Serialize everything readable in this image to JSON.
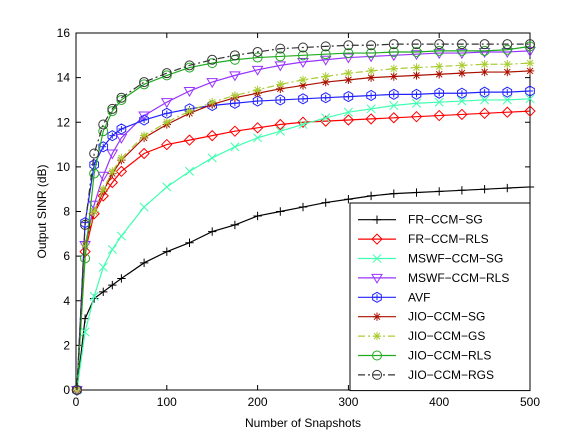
{
  "chart_data": {
    "type": "line",
    "title": "",
    "xlabel": "Number of Snapshots",
    "ylabel": "Output SINR (dB)",
    "xlim": [
      0,
      500
    ],
    "ylim": [
      0,
      16
    ],
    "xticks": [
      0,
      100,
      200,
      300,
      400,
      500
    ],
    "yticks": [
      0,
      2,
      4,
      6,
      8,
      10,
      12,
      14,
      16
    ],
    "grid": false,
    "legend_position": "bottom-right",
    "series": [
      {
        "name": "FR−CCM−SG",
        "color": "#000000",
        "marker": "plus",
        "dash": "solid",
        "x": [
          1,
          10,
          20,
          30,
          40,
          50,
          75,
          100,
          125,
          150,
          175,
          200,
          225,
          250,
          275,
          300,
          325,
          350,
          375,
          400,
          425,
          450,
          475,
          500
        ],
        "y": [
          0,
          3.2,
          4.1,
          4.4,
          4.7,
          5.0,
          5.7,
          6.2,
          6.6,
          7.1,
          7.4,
          7.8,
          8.0,
          8.2,
          8.4,
          8.55,
          8.7,
          8.8,
          8.85,
          8.9,
          8.95,
          9.0,
          9.05,
          9.1
        ]
      },
      {
        "name": "FR−CCM−RLS",
        "color": "#ff0000",
        "marker": "diamond",
        "dash": "solid",
        "x": [
          1,
          10,
          20,
          30,
          40,
          50,
          75,
          100,
          125,
          150,
          175,
          200,
          225,
          250,
          275,
          300,
          325,
          350,
          375,
          400,
          425,
          450,
          475,
          500
        ],
        "y": [
          0,
          6.2,
          7.9,
          8.7,
          9.3,
          9.8,
          10.6,
          11.0,
          11.2,
          11.4,
          11.6,
          11.75,
          11.9,
          12.0,
          12.05,
          12.1,
          12.15,
          12.2,
          12.25,
          12.3,
          12.35,
          12.4,
          12.45,
          12.5
        ]
      },
      {
        "name": "MSWF−CCM−SG",
        "color": "#40ffb0",
        "marker": "x",
        "dash": "solid",
        "x": [
          1,
          10,
          20,
          30,
          40,
          50,
          75,
          100,
          125,
          150,
          175,
          200,
          225,
          250,
          275,
          300,
          325,
          350,
          375,
          400,
          425,
          450,
          475,
          500
        ],
        "y": [
          0,
          2.6,
          4.2,
          5.5,
          6.3,
          6.9,
          8.2,
          9.1,
          9.8,
          10.4,
          10.9,
          11.3,
          11.6,
          11.9,
          12.2,
          12.45,
          12.6,
          12.75,
          12.85,
          12.9,
          12.95,
          13.0,
          13.0,
          13.05
        ]
      },
      {
        "name": "MSWF−CCM−RLS",
        "color": "#9933ff",
        "marker": "triangle-down",
        "dash": "solid",
        "x": [
          1,
          10,
          20,
          30,
          40,
          50,
          75,
          100,
          125,
          150,
          175,
          200,
          225,
          250,
          275,
          300,
          325,
          350,
          375,
          400,
          425,
          450,
          475,
          500
        ],
        "y": [
          0,
          6.5,
          8.3,
          9.6,
          10.6,
          11.3,
          12.3,
          12.9,
          13.4,
          13.8,
          14.1,
          14.35,
          14.55,
          14.7,
          14.8,
          14.9,
          14.95,
          15.0,
          15.05,
          15.1,
          15.1,
          15.15,
          15.15,
          15.2
        ]
      },
      {
        "name": "AVF",
        "color": "#2222ff",
        "marker": "star",
        "dash": "solid",
        "x": [
          1,
          10,
          20,
          30,
          40,
          50,
          75,
          100,
          125,
          150,
          175,
          200,
          225,
          250,
          275,
          300,
          325,
          350,
          375,
          400,
          425,
          450,
          475,
          500
        ],
        "y": [
          0,
          7.5,
          10.1,
          10.9,
          11.4,
          11.7,
          12.1,
          12.4,
          12.6,
          12.75,
          12.85,
          12.95,
          13.0,
          13.05,
          13.1,
          13.15,
          13.2,
          13.25,
          13.25,
          13.3,
          13.3,
          13.35,
          13.35,
          13.4
        ]
      },
      {
        "name": "JIO−CCM−SG",
        "color": "#aa1100",
        "marker": "asterisk",
        "dash": "solid",
        "x": [
          1,
          10,
          20,
          30,
          40,
          50,
          75,
          100,
          125,
          150,
          175,
          200,
          225,
          250,
          275,
          300,
          325,
          350,
          375,
          400,
          425,
          450,
          475,
          500
        ],
        "y": [
          0,
          6.5,
          8.0,
          8.9,
          9.7,
          10.3,
          11.3,
          11.9,
          12.4,
          12.8,
          13.1,
          13.3,
          13.5,
          13.65,
          13.8,
          13.9,
          14.0,
          14.05,
          14.1,
          14.15,
          14.2,
          14.25,
          14.25,
          14.3
        ]
      },
      {
        "name": "JIO−CCM−GS",
        "color": "#aacc33",
        "marker": "asterisk",
        "dash": "dashdot",
        "x": [
          1,
          10,
          20,
          30,
          40,
          50,
          75,
          100,
          125,
          150,
          175,
          200,
          225,
          250,
          275,
          300,
          325,
          350,
          375,
          400,
          425,
          450,
          475,
          500
        ],
        "y": [
          0,
          6.5,
          8.0,
          9.0,
          9.8,
          10.4,
          11.4,
          12.0,
          12.5,
          12.9,
          13.2,
          13.45,
          13.7,
          13.9,
          14.05,
          14.2,
          14.3,
          14.4,
          14.45,
          14.5,
          14.55,
          14.6,
          14.6,
          14.65
        ]
      },
      {
        "name": "JIO−CCM−RLS",
        "color": "#22aa22",
        "marker": "circle",
        "dash": "solid",
        "x": [
          1,
          10,
          20,
          30,
          40,
          50,
          75,
          100,
          125,
          150,
          175,
          200,
          225,
          250,
          275,
          300,
          325,
          350,
          375,
          400,
          425,
          450,
          475,
          500
        ],
        "y": [
          0,
          5.9,
          9.7,
          11.6,
          12.5,
          13.0,
          13.7,
          14.1,
          14.45,
          14.65,
          14.8,
          14.9,
          14.95,
          15.0,
          15.05,
          15.1,
          15.1,
          15.15,
          15.15,
          15.2,
          15.2,
          15.2,
          15.25,
          15.4
        ]
      },
      {
        "name": "JIO−CCM−RGS",
        "color": "#333333",
        "marker": "circle",
        "dash": "dashdot",
        "x": [
          1,
          10,
          20,
          30,
          40,
          50,
          75,
          100,
          125,
          150,
          175,
          200,
          225,
          250,
          275,
          300,
          325,
          350,
          375,
          400,
          425,
          450,
          475,
          500
        ],
        "y": [
          0,
          7.4,
          10.6,
          11.9,
          12.6,
          13.1,
          13.8,
          14.2,
          14.55,
          14.8,
          15.0,
          15.15,
          15.3,
          15.35,
          15.4,
          15.45,
          15.45,
          15.5,
          15.5,
          15.5,
          15.5,
          15.5,
          15.5,
          15.5
        ]
      }
    ]
  }
}
